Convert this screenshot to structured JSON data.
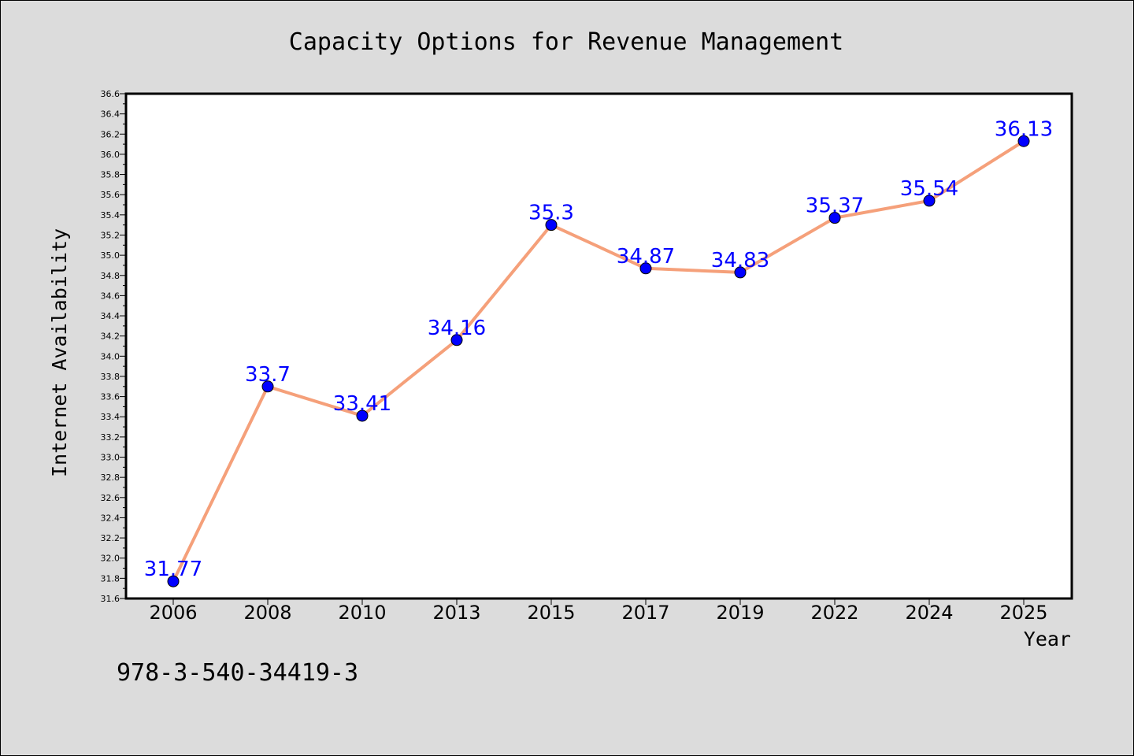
{
  "chart_data": {
    "type": "line",
    "title": "Capacity Options for Revenue Management",
    "xlabel": "Year",
    "ylabel": "Internet Availability",
    "categories": [
      "2006",
      "2008",
      "2010",
      "2013",
      "2015",
      "2017",
      "2019",
      "2022",
      "2024",
      "2025"
    ],
    "series": [
      {
        "values": [
          31.77,
          33.7,
          33.41,
          34.16,
          35.3,
          34.87,
          34.83,
          35.37,
          35.54,
          36.13
        ],
        "line_color": "#f5a07a",
        "marker_color": "#0000ff",
        "label_color": "#0000ff"
      }
    ],
    "ylim": [
      31.6,
      36.6
    ],
    "yticks": [
      "31.6",
      "31.8",
      "32.0",
      "32.2",
      "32.4",
      "32.6",
      "32.8",
      "33.0",
      "33.2",
      "33.4",
      "33.6",
      "33.8",
      "34.0",
      "34.2",
      "34.4",
      "34.6",
      "34.8",
      "35.0",
      "35.2",
      "35.4",
      "35.6",
      "35.8",
      "36.0",
      "36.2",
      "36.4",
      "36.6"
    ],
    "grid": false,
    "legend": "none",
    "annotation": "978-3-540-34419-3"
  },
  "colors": {
    "background": "#dcdcdc",
    "plot_area": "#ffffff",
    "line": "#f5a07a",
    "marker": "#0000ff",
    "data_label": "#0000ff"
  }
}
